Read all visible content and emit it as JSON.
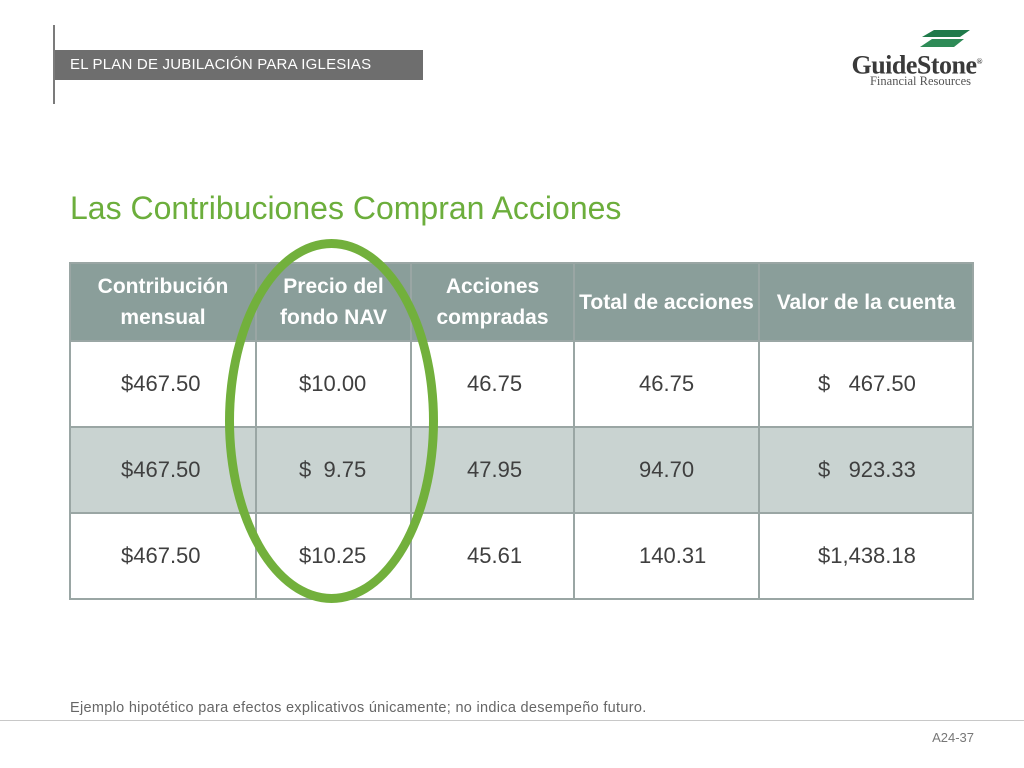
{
  "header": {
    "label": "EL PLAN DE JUBILACIÓN PARA IGLESIAS"
  },
  "logo": {
    "name": "GuideStone",
    "registered": "®",
    "subtitle": "Financial Resources",
    "mark_color": "#1f7a4a"
  },
  "title": "Las Contribuciones Compran Acciones",
  "table": {
    "headers": [
      "Contribución mensual",
      "Precio del fondo NAV",
      "Acciones compradas",
      "Total de acciones",
      "Valor de la cuenta"
    ],
    "rows": [
      [
        "$467.50",
        "$10.00",
        "46.75",
        "46.75",
        "$   467.50"
      ],
      [
        "$467.50",
        "$  9.75",
        "47.95",
        "94.70",
        "$   923.33"
      ],
      [
        "$467.50",
        "$10.25",
        "45.61",
        "140.31",
        "$1,438.18"
      ]
    ]
  },
  "highlight": {
    "column": "Precio del fondo NAV",
    "color": "#72b03c"
  },
  "footnote": "Ejemplo hipotético para efectos explicativos únicamente; no indica desempeño futuro.",
  "page_number": "A24-37",
  "colors": {
    "title_green": "#6cae3c",
    "header_gray": "#6e6e6e",
    "table_header": "#8a9e9a",
    "shaded_row": "#c9d3d1"
  }
}
